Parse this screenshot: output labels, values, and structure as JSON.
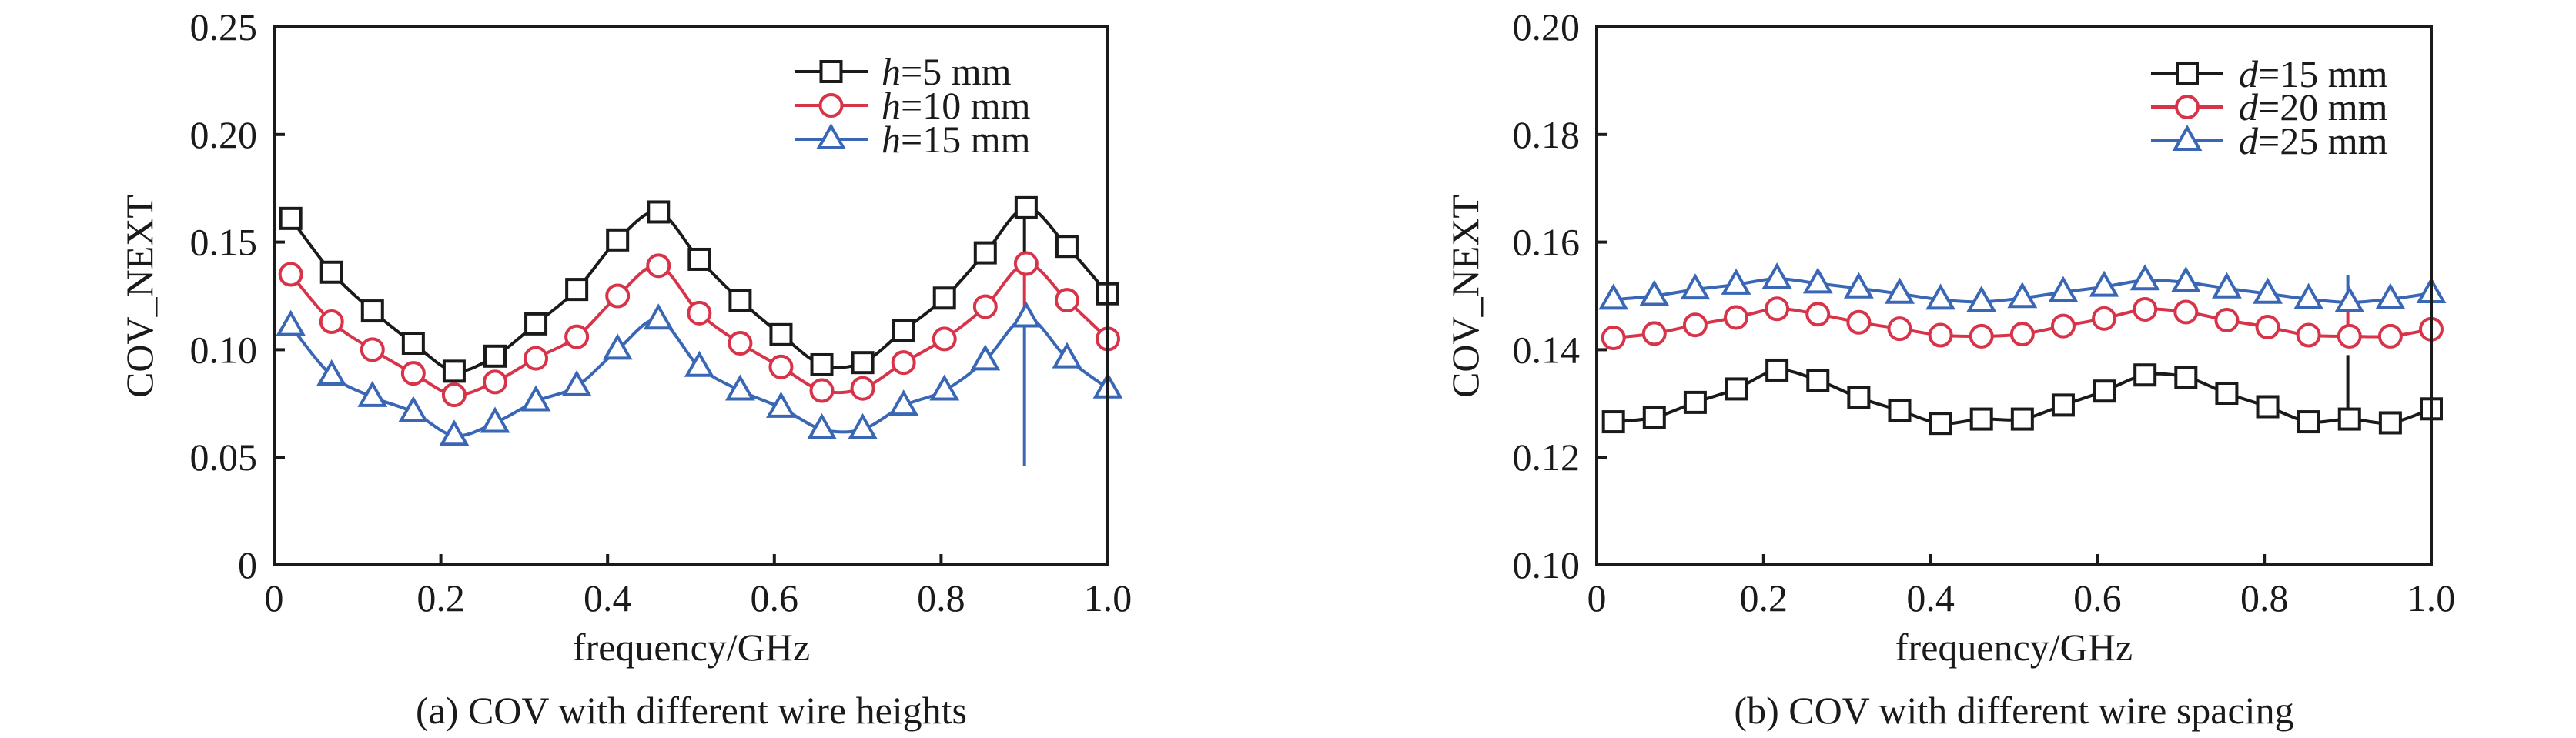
{
  "chart_data": [
    {
      "id": "a",
      "type": "line",
      "caption": "(a) COV with different wire heights",
      "xlabel": "frequency/GHz",
      "ylabel": "COV_NEXT",
      "xlim": [
        0,
        1.0
      ],
      "ylim": [
        0,
        0.25
      ],
      "xticks": [
        0,
        0.2,
        0.4,
        0.6,
        0.8,
        1.0
      ],
      "xtick_labels": [
        "0",
        "0.2",
        "0.4",
        "0.6",
        "0.8",
        "1.0"
      ],
      "yticks": [
        0,
        0.05,
        0.1,
        0.15,
        0.2,
        0.25
      ],
      "ytick_labels": [
        "0",
        "0.05",
        "0.10",
        "0.15",
        "0.20",
        "0.25"
      ],
      "grid": false,
      "legend_position": "top-right",
      "x": [
        0.02,
        0.069,
        0.118,
        0.167,
        0.216,
        0.265,
        0.314,
        0.363,
        0.412,
        0.461,
        0.51,
        0.559,
        0.608,
        0.657,
        0.706,
        0.755,
        0.804,
        0.853,
        0.902,
        0.951,
        1.0
      ],
      "series": [
        {
          "name": "h=5 mm",
          "legend_var": "h",
          "legend_rest": "=5 mm",
          "marker": "square",
          "color": "#1a1a1a",
          "values": [
            0.161,
            0.136,
            0.118,
            0.103,
            0.09,
            0.097,
            0.112,
            0.128,
            0.151,
            0.164,
            0.142,
            0.123,
            0.107,
            0.093,
            0.094,
            0.109,
            0.124,
            0.145,
            0.166,
            0.148,
            0.126
          ],
          "spike": {
            "x": 0.9,
            "from": 0.166,
            "to": 0.14
          }
        },
        {
          "name": "h=10 mm",
          "legend_var": "h",
          "legend_rest": "=10 mm",
          "marker": "circle",
          "color": "#d7344a",
          "values": [
            0.135,
            0.113,
            0.1,
            0.089,
            0.079,
            0.085,
            0.096,
            0.106,
            0.125,
            0.139,
            0.117,
            0.103,
            0.092,
            0.081,
            0.082,
            0.094,
            0.105,
            0.12,
            0.14,
            0.123,
            0.105
          ],
          "spike": {
            "x": 0.9,
            "from": 0.14,
            "to": 0.116
          }
        },
        {
          "name": "h=15 mm",
          "legend_var": "h",
          "legend_rest": "=15 mm",
          "marker": "triangle",
          "color": "#3a67b5",
          "values": [
            0.111,
            0.088,
            0.078,
            0.071,
            0.06,
            0.066,
            0.076,
            0.083,
            0.1,
            0.114,
            0.092,
            0.081,
            0.073,
            0.063,
            0.063,
            0.074,
            0.081,
            0.095,
            0.115,
            0.096,
            0.082
          ],
          "spike": {
            "x": 0.9,
            "from": 0.115,
            "to": 0.046
          }
        }
      ]
    },
    {
      "id": "b",
      "type": "line",
      "caption": "(b) COV with different wire spacing",
      "xlabel": "frequency/GHz",
      "ylabel": "COV_NEXT",
      "xlim": [
        0,
        1.0
      ],
      "ylim": [
        0.1,
        0.2
      ],
      "xticks": [
        0,
        0.2,
        0.4,
        0.6,
        0.8,
        1.0
      ],
      "xtick_labels": [
        "0",
        "0.2",
        "0.4",
        "0.6",
        "0.8",
        "1.0"
      ],
      "yticks": [
        0.1,
        0.12,
        0.14,
        0.16,
        0.18,
        0.2
      ],
      "ytick_labels": [
        "0.10",
        "0.12",
        "0.14",
        "0.16",
        "0.18",
        "0.20"
      ],
      "grid": false,
      "legend_position": "top-right",
      "x": [
        0.02,
        0.069,
        0.118,
        0.167,
        0.216,
        0.265,
        0.314,
        0.363,
        0.412,
        0.461,
        0.51,
        0.559,
        0.608,
        0.657,
        0.706,
        0.755,
        0.804,
        0.853,
        0.902,
        0.951,
        1.0
      ],
      "series": [
        {
          "name": "d=15 mm",
          "legend_var": "d",
          "legend_rest": "=15 mm",
          "marker": "square",
          "color": "#1a1a1a",
          "values": [
            0.1266,
            0.1274,
            0.1302,
            0.1327,
            0.1362,
            0.1343,
            0.1311,
            0.1287,
            0.1263,
            0.1271,
            0.1271,
            0.1297,
            0.1323,
            0.1353,
            0.1349,
            0.1319,
            0.1294,
            0.1266,
            0.1271,
            0.1264,
            0.129
          ],
          "spike": {
            "x": 0.9,
            "from": 0.1271,
            "to": 0.139
          }
        },
        {
          "name": "d=20 mm",
          "legend_var": "d",
          "legend_rest": "=20 mm",
          "marker": "circle",
          "color": "#d7344a",
          "values": [
            0.1422,
            0.143,
            0.1446,
            0.146,
            0.1476,
            0.1466,
            0.1451,
            0.1439,
            0.1427,
            0.1425,
            0.1429,
            0.1444,
            0.1458,
            0.1475,
            0.147,
            0.1455,
            0.1442,
            0.1427,
            0.1425,
            0.1425,
            0.1438
          ],
          "spike": {
            "x": 0.9,
            "from": 0.1425,
            "to": 0.1478
          }
        },
        {
          "name": "d=25 mm",
          "legend_var": "d",
          "legend_rest": "=25 mm",
          "marker": "triangle",
          "color": "#3a67b5",
          "values": [
            0.1493,
            0.15,
            0.1512,
            0.1521,
            0.1532,
            0.1523,
            0.1514,
            0.1504,
            0.1493,
            0.1489,
            0.1496,
            0.1507,
            0.1517,
            0.1529,
            0.1525,
            0.1514,
            0.1504,
            0.1494,
            0.1488,
            0.1494,
            0.1505
          ],
          "spike": {
            "x": 0.9,
            "from": 0.1488,
            "to": 0.1539
          }
        }
      ]
    }
  ]
}
